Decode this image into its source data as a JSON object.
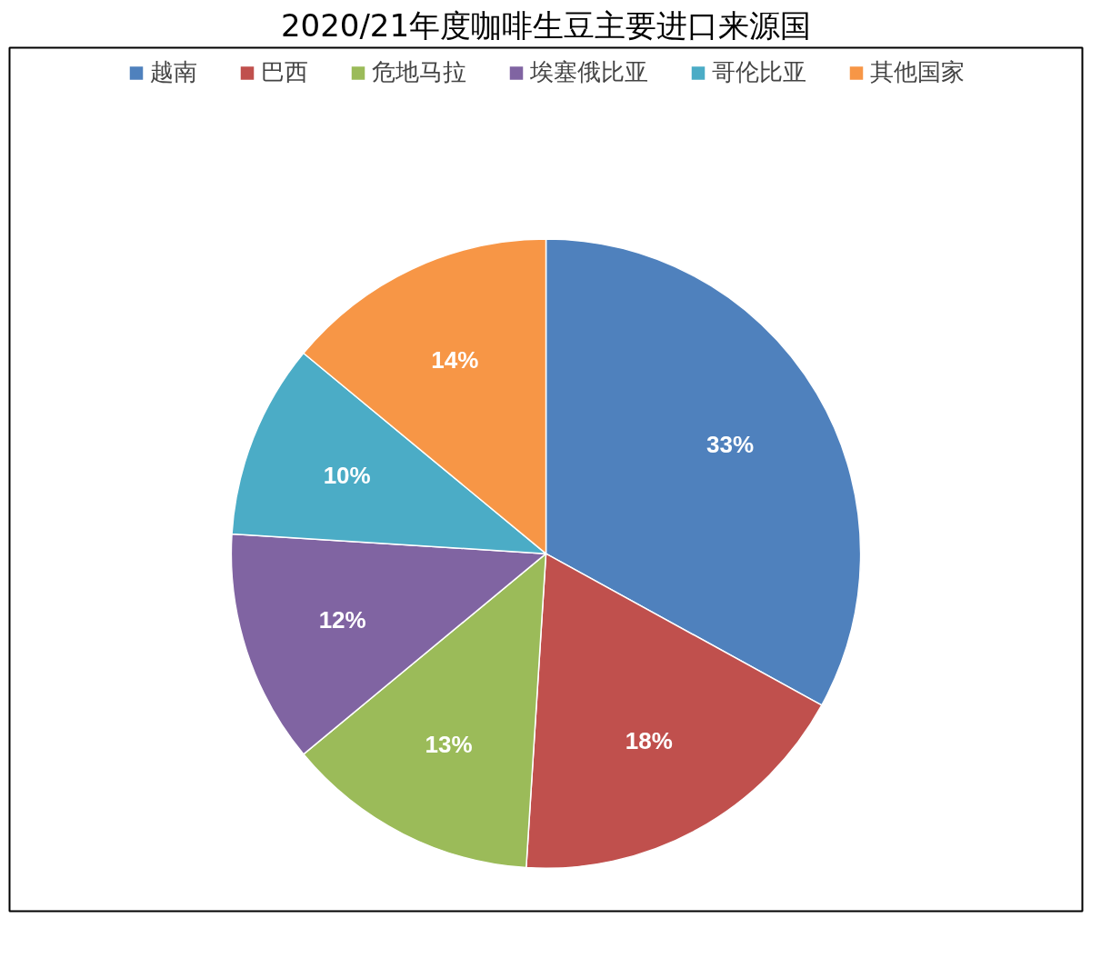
{
  "chart_data": {
    "type": "pie",
    "title": "2020/21年度咖啡生豆主要进口来源国",
    "categories": [
      "越南",
      "巴西",
      "危地马拉",
      "埃塞俄比亚",
      "哥伦比亚",
      "其他国家"
    ],
    "values": [
      33,
      18,
      13,
      12,
      10,
      14
    ],
    "value_labels": [
      "33%",
      "18%",
      "13%",
      "12%",
      "10%",
      "14%"
    ],
    "colors": [
      "#4f81bd",
      "#c0504d",
      "#9bbb59",
      "#8064a2",
      "#4bacc6",
      "#f79646"
    ],
    "legend": "top"
  }
}
